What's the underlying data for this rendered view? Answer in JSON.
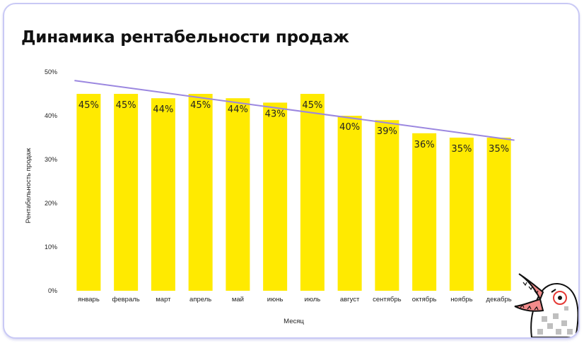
{
  "title": "Динамика рентабельности продаж",
  "colors": {
    "bar": "#ffea00",
    "trend": "#9b87e0",
    "card_border": "#c9c9f5",
    "text": "#222222"
  },
  "chart_data": {
    "type": "bar",
    "title": "Динамика рентабельности продаж",
    "xlabel": "Месяц",
    "ylabel": "Рентабельность продаж",
    "categories": [
      "январь",
      "февраль",
      "март",
      "апрель",
      "май",
      "июнь",
      "июль",
      "август",
      "сентябрь",
      "октябрь",
      "ноябрь",
      "декабрь"
    ],
    "series": [
      {
        "values": [
          45,
          45,
          44,
          45,
          44,
          43,
          45,
          40,
          39,
          36,
          35,
          35
        ],
        "labels": [
          "45%",
          "45%",
          "44%",
          "45%",
          "44%",
          "43%",
          "45%",
          "40%",
          "39%",
          "36%",
          "35%",
          "35%"
        ]
      }
    ],
    "trendline": {
      "start": 47.6,
      "end": 34.9
    },
    "ylim": [
      0,
      50
    ],
    "yticks": [
      0,
      10,
      20,
      30,
      40,
      50
    ],
    "ytick_labels": [
      "0%",
      "10%",
      "20%",
      "30%",
      "40%",
      "50%"
    ],
    "grid": false,
    "legend": "none"
  },
  "mascot": {
    "icon": "bird-mascot-icon"
  }
}
